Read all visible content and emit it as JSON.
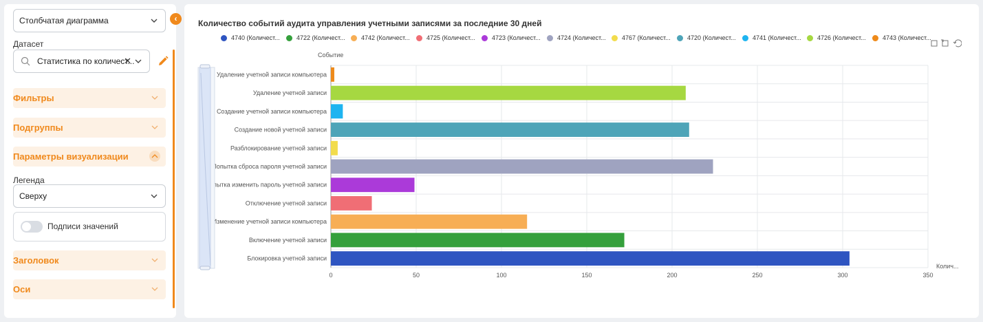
{
  "sidebar": {
    "chart_type": "Столбчатая диаграмма",
    "dataset_label": "Датасет",
    "dataset_value": "Статистика по количест...",
    "clear_symbol": "✕",
    "filters": "Фильтры",
    "subgroups": "Подгруппы",
    "viz_params": "Параметры визуализации",
    "legend_label": "Легенда",
    "legend_value": "Сверху",
    "value_labels": "Подписи значений",
    "header_section": "Заголовок",
    "axes_section": "Оси",
    "collapse_symbol": "‹",
    "value_labels_enabled": false
  },
  "colors": {
    "accent": "#f0891c",
    "grid": "#e6e8eb"
  },
  "chart_data": {
    "type": "bar",
    "orientation": "horizontal",
    "title": "Количество событий аудита управления учетными записями за последние 30 дней",
    "ylabel": "Событие",
    "xlabel": "Колич...",
    "xlim": [
      0,
      350
    ],
    "xticks": [
      0,
      50,
      100,
      150,
      200,
      250,
      300,
      350
    ],
    "grid": true,
    "legend_position": "top",
    "categories": [
      "Удаление учетной записи компьютера",
      "Удаление учетной записи",
      "Создание учетной записи компьютера",
      "Создание новой учетной записи",
      "Разблокирование учетной записи",
      "Попытка сброса пароля учетной записи",
      "Попытка изменить пароль учетной записи",
      "Отключение учетной записи",
      "Изменение учетной записи компьютера",
      "Включение учетной записи",
      "Блокировка учетной записи"
    ],
    "values": [
      2,
      208,
      7,
      210,
      4,
      224,
      49,
      24,
      115,
      172,
      304
    ],
    "bar_colors": [
      "#ee8a1a",
      "#a6d841",
      "#1eb4f0",
      "#4ea4b8",
      "#f2dc4c",
      "#9fa3c0",
      "#ab3ad9",
      "#f06e75",
      "#f7ae55",
      "#35a03c",
      "#2f55c1"
    ],
    "legend": [
      {
        "label": "4740 (Количест...",
        "color": "#2f55c1"
      },
      {
        "label": "4722 (Количест...",
        "color": "#35a03c"
      },
      {
        "label": "4742 (Количест...",
        "color": "#f7ae55"
      },
      {
        "label": "4725 (Количест...",
        "color": "#f06e75"
      },
      {
        "label": "4723 (Количест...",
        "color": "#ab3ad9"
      },
      {
        "label": "4724 (Количест...",
        "color": "#9fa3c0"
      },
      {
        "label": "4767 (Количест...",
        "color": "#f2dc4c"
      },
      {
        "label": "4720 (Количест...",
        "color": "#4ea4b8"
      },
      {
        "label": "4741 (Количест...",
        "color": "#1eb4f0"
      },
      {
        "label": "4726 (Количест...",
        "color": "#a6d841"
      },
      {
        "label": "4743 (Количест...",
        "color": "#ee8a1a"
      }
    ]
  }
}
